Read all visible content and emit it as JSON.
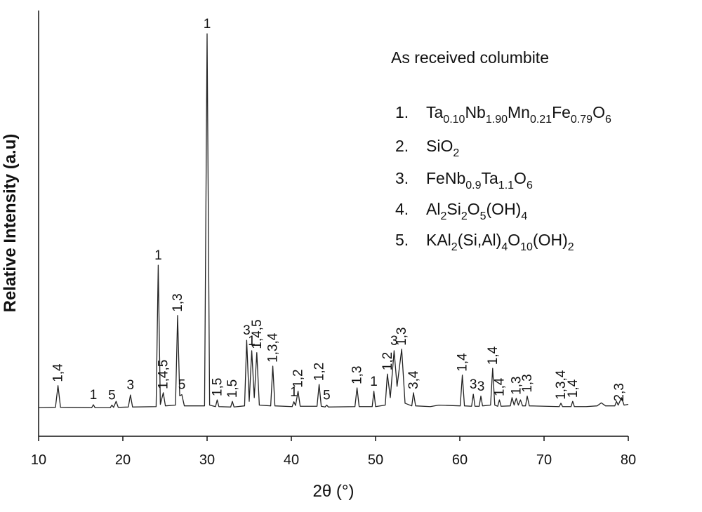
{
  "chart_data": {
    "type": "line",
    "xlabel": "2θ (°)",
    "ylabel": "Relative Intensity (a.u)",
    "xlim": [
      10,
      80
    ],
    "xticks": [
      10,
      20,
      30,
      40,
      50,
      60,
      70,
      80
    ],
    "ylim": [
      -7.3,
      106.2
    ],
    "color": "#222222",
    "x": [
      10,
      12.0,
      12.3,
      12.6,
      16.3,
      16.5,
      16.7,
      18.5,
      18.7,
      18.9,
      19.2,
      19.45,
      20.65,
      20.9,
      21.15,
      23.95,
      24.2,
      24.45,
      24.8,
      25.05,
      26.25,
      26.5,
      26.75,
      27.0,
      27.3,
      29.7,
      30.0,
      30.3,
      31.0,
      31.2,
      31.4,
      32.8,
      33.0,
      33.2,
      34.45,
      34.7,
      35.0,
      35.3,
      35.6,
      35.9,
      36.2,
      37.55,
      37.8,
      38.05,
      40.1,
      40.3,
      40.5,
      40.8,
      41.05,
      43.05,
      43.3,
      43.55,
      44.0,
      44.2,
      44.4,
      47.55,
      47.8,
      48.05,
      49.6,
      49.8,
      50.0,
      51.15,
      51.4,
      51.75,
      52.2,
      52.55,
      53.1,
      53.5,
      54.3,
      54.5,
      54.75,
      56.5,
      57.5,
      60.05,
      60.3,
      60.55,
      61.4,
      61.6,
      61.8,
      62.3,
      62.5,
      62.7,
      63.65,
      63.9,
      64.15,
      64.5,
      64.7,
      64.9,
      66.0,
      66.2,
      66.45,
      66.7,
      66.95,
      67.2,
      67.45,
      67.8,
      68.0,
      68.25,
      71.8,
      72.0,
      72.2,
      73.2,
      73.4,
      73.6,
      75.0,
      76.3,
      76.8,
      77.3,
      78.4,
      78.6,
      78.8,
      79.2,
      79.5,
      80
    ],
    "values": [
      0.3,
      0.4,
      6.2,
      0.4,
      0.3,
      1.1,
      0.3,
      0.3,
      1.0,
      0.4,
      2.0,
      0.4,
      0.5,
      3.7,
      0.5,
      0.6,
      38.3,
      1.2,
      4.3,
      0.8,
      1.0,
      24.9,
      3.5,
      3.8,
      0.8,
      0.8,
      100,
      1.0,
      0.6,
      2.4,
      0.6,
      0.5,
      2.0,
      0.5,
      0.8,
      18.3,
      2.0,
      15.5,
      3.0,
      15.0,
      1.0,
      0.8,
      11.4,
      0.8,
      0.6,
      1.9,
      0.9,
      4.7,
      0.7,
      0.7,
      6.5,
      0.7,
      0.5,
      1.0,
      0.5,
      0.6,
      5.6,
      0.6,
      0.6,
      4.7,
      0.6,
      1.0,
      9.3,
      3.0,
      15.5,
      6.0,
      15.9,
      1.5,
      0.8,
      4.3,
      0.8,
      0.6,
      1.0,
      0.8,
      9.0,
      0.8,
      0.7,
      3.9,
      0.7,
      0.7,
      3.4,
      0.8,
      1.0,
      10.8,
      1.0,
      0.7,
      2.4,
      0.7,
      0.8,
      3.0,
      1.0,
      2.8,
      1.0,
      2.4,
      0.8,
      0.8,
      3.4,
      0.8,
      0.6,
      1.5,
      0.6,
      0.6,
      2.0,
      0.6,
      0.6,
      0.8,
      1.6,
      0.8,
      0.8,
      2.0,
      1.0,
      3.0,
      1.0,
      1.2
    ],
    "annotations": [
      {
        "text": "1,4",
        "x": 12.3
      },
      {
        "text": "1",
        "x": 16.5
      },
      {
        "text": "5",
        "x": 18.7
      },
      {
        "text": "3",
        "x": 20.9
      },
      {
        "text": "1",
        "x": 24.2
      },
      {
        "text": "1,4,5",
        "x": 24.8
      },
      {
        "text": "1,3",
        "x": 26.5
      },
      {
        "text": "5",
        "x": 27.0
      },
      {
        "text": "1",
        "x": 30.0
      },
      {
        "text": "1,5",
        "x": 31.2
      },
      {
        "text": "1,5",
        "x": 33.0
      },
      {
        "text": "3",
        "x": 34.7
      },
      {
        "text": "1",
        "x": 35.3
      },
      {
        "text": "1,4,5",
        "x": 35.9
      },
      {
        "text": "1,3,4",
        "x": 37.8
      },
      {
        "text": "1",
        "x": 40.3
      },
      {
        "text": "1,2",
        "x": 40.8
      },
      {
        "text": "1,2",
        "x": 43.3
      },
      {
        "text": "5",
        "x": 44.2
      },
      {
        "text": "1,3",
        "x": 47.8
      },
      {
        "text": "1",
        "x": 49.8
      },
      {
        "text": "1,2",
        "x": 51.4
      },
      {
        "text": "3",
        "x": 52.2
      },
      {
        "text": "1,3",
        "x": 53.1
      },
      {
        "text": "3,4",
        "x": 54.5
      },
      {
        "text": "1,4",
        "x": 60.3
      },
      {
        "text": "3",
        "x": 61.6
      },
      {
        "text": "3",
        "x": 62.5
      },
      {
        "text": "1,4",
        "x": 63.9
      },
      {
        "text": "1,4",
        "x": 64.7
      },
      {
        "text": "1,3",
        "x": 66.7
      },
      {
        "text": "1,3",
        "x": 68.0
      },
      {
        "text": "1,3,4",
        "x": 72.0
      },
      {
        "text": "1,4",
        "x": 73.4
      },
      {
        "text": "2,3",
        "x": 78.9
      }
    ],
    "legend_title": "As received columbite",
    "phases": [
      {
        "number": "1.",
        "parts": [
          {
            "t": "Ta"
          },
          {
            "t": "0.10",
            "sub": true
          },
          {
            "t": "Nb"
          },
          {
            "t": "1.90",
            "sub": true
          },
          {
            "t": "Mn"
          },
          {
            "t": "0.21",
            "sub": true
          },
          {
            "t": "Fe"
          },
          {
            "t": "0.79",
            "sub": true
          },
          {
            "t": "O"
          },
          {
            "t": "6",
            "sub": true
          }
        ]
      },
      {
        "number": "2.",
        "parts": [
          {
            "t": "SiO"
          },
          {
            "t": "2",
            "sub": true
          }
        ]
      },
      {
        "number": "3.",
        "parts": [
          {
            "t": "FeNb"
          },
          {
            "t": "0.9",
            "sub": true
          },
          {
            "t": "Ta"
          },
          {
            "t": "1.1",
            "sub": true
          },
          {
            "t": "O"
          },
          {
            "t": "6",
            "sub": true
          }
        ]
      },
      {
        "number": "4.",
        "parts": [
          {
            "t": "Al"
          },
          {
            "t": "2",
            "sub": true
          },
          {
            "t": "Si"
          },
          {
            "t": "2",
            "sub": true
          },
          {
            "t": "O"
          },
          {
            "t": "5",
            "sub": true
          },
          {
            "t": "(OH)"
          },
          {
            "t": "4",
            "sub": true
          }
        ]
      },
      {
        "number": "5.",
        "parts": [
          {
            "t": "KAl"
          },
          {
            "t": "2",
            "sub": true
          },
          {
            "t": "(Si,Al)"
          },
          {
            "t": "4",
            "sub": true
          },
          {
            "t": "O"
          },
          {
            "t": "10",
            "sub": true
          },
          {
            "t": "(OH)"
          },
          {
            "t": "2",
            "sub": true
          }
        ]
      }
    ]
  }
}
